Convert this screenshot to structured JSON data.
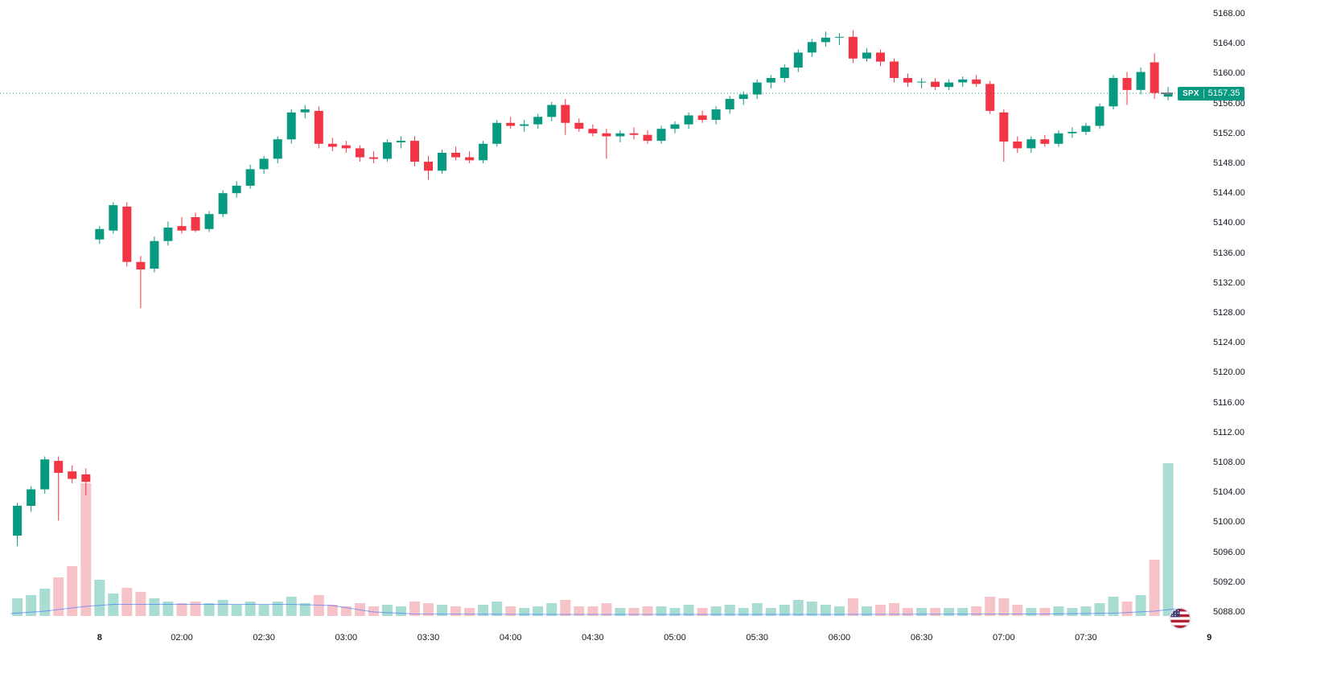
{
  "chart_data": {
    "type": "candlestick",
    "symbol": "SPX",
    "last_price": 5157.35,
    "last_price_label": "5157.35",
    "colors": {
      "up": "#089981",
      "down": "#F23645",
      "vol_up": "#a9dcd2",
      "vol_down": "#f6c3c8",
      "last_price_line": "#089981",
      "tag_bg": "#089981",
      "volume_ma_line": "#2962FF",
      "axis_text": "#131722",
      "dash": "#787b86"
    },
    "price_axis_ticks": [
      "5168.00",
      "5164.00",
      "5160.00",
      "5156.00",
      "5152.00",
      "5148.00",
      "5144.00",
      "5140.00",
      "5136.00",
      "5132.00",
      "5128.00",
      "5124.00",
      "5120.00",
      "5116.00",
      "5112.00",
      "5108.00",
      "5104.00",
      "5100.00",
      "5096.00",
      "5092.00",
      "5088.00"
    ],
    "price_axis_range": {
      "min": 5088,
      "max": 5168,
      "step": 4
    },
    "time_axis": [
      {
        "label": "8",
        "index": 6,
        "bold": true
      },
      {
        "label": "02:00",
        "index": 12,
        "bold": false
      },
      {
        "label": "02:30",
        "index": 18,
        "bold": false
      },
      {
        "label": "03:00",
        "index": 24,
        "bold": false
      },
      {
        "label": "03:30",
        "index": 30,
        "bold": false
      },
      {
        "label": "04:00",
        "index": 36,
        "bold": false
      },
      {
        "label": "04:30",
        "index": 42,
        "bold": false
      },
      {
        "label": "05:00",
        "index": 48,
        "bold": false
      },
      {
        "label": "05:30",
        "index": 54,
        "bold": false
      },
      {
        "label": "06:00",
        "index": 60,
        "bold": false
      },
      {
        "label": "06:30",
        "index": 66,
        "bold": false
      },
      {
        "label": "07:00",
        "index": 72,
        "bold": false
      },
      {
        "label": "07:30",
        "index": 78,
        "bold": false
      },
      {
        "label": "9",
        "index": 87,
        "bold": true
      }
    ],
    "candles_format": [
      "open",
      "high",
      "low",
      "close",
      "volume"
    ],
    "candles": [
      [
        5098.2,
        5102.6,
        5096.8,
        5102.2,
        22
      ],
      [
        5102.2,
        5104.8,
        5101.4,
        5104.4,
        26
      ],
      [
        5104.4,
        5108.8,
        5103.8,
        5108.4,
        34
      ],
      [
        5108.2,
        5108.8,
        5100.2,
        5106.6,
        48
      ],
      [
        5106.8,
        5107.6,
        5105.2,
        5105.8,
        62
      ],
      [
        5106.4,
        5107.2,
        5103.6,
        5105.4,
        165
      ],
      [
        5137.8,
        5139.6,
        5137.2,
        5139.2,
        45
      ],
      [
        5139.0,
        5142.8,
        5138.6,
        5142.4,
        28
      ],
      [
        5142.2,
        5142.8,
        5134.2,
        5134.8,
        35
      ],
      [
        5134.8,
        5135.6,
        5128.6,
        5133.8,
        30
      ],
      [
        5133.9,
        5138.2,
        5133.4,
        5137.6,
        22
      ],
      [
        5137.6,
        5140.2,
        5137.0,
        5139.4,
        18
      ],
      [
        5139.6,
        5140.8,
        5138.6,
        5139.0,
        16
      ],
      [
        5140.8,
        5141.4,
        5138.8,
        5139.0,
        18
      ],
      [
        5139.2,
        5141.6,
        5138.8,
        5141.2,
        16
      ],
      [
        5141.2,
        5144.4,
        5140.8,
        5144.0,
        20
      ],
      [
        5144.0,
        5145.6,
        5143.4,
        5145.0,
        14
      ],
      [
        5145.0,
        5147.8,
        5144.6,
        5147.2,
        18
      ],
      [
        5147.2,
        5149.0,
        5146.6,
        5148.6,
        14
      ],
      [
        5148.6,
        5151.6,
        5148.0,
        5151.2,
        18
      ],
      [
        5151.2,
        5155.2,
        5150.6,
        5154.8,
        24
      ],
      [
        5154.8,
        5155.8,
        5154.0,
        5155.2,
        16
      ],
      [
        5155.0,
        5155.6,
        5150.0,
        5150.6,
        26
      ],
      [
        5150.6,
        5151.4,
        5149.6,
        5150.2,
        14
      ],
      [
        5150.4,
        5151.0,
        5149.4,
        5150.0,
        12
      ],
      [
        5150.0,
        5150.4,
        5148.2,
        5148.8,
        16
      ],
      [
        5148.8,
        5149.6,
        5148.0,
        5148.6,
        12
      ],
      [
        5148.6,
        5151.2,
        5148.2,
        5150.8,
        14
      ],
      [
        5150.8,
        5151.6,
        5150.0,
        5151.0,
        12
      ],
      [
        5151.0,
        5151.6,
        5147.6,
        5148.2,
        18
      ],
      [
        5148.2,
        5149.0,
        5145.8,
        5147.0,
        16
      ],
      [
        5147.0,
        5149.8,
        5146.6,
        5149.4,
        14
      ],
      [
        5149.4,
        5150.2,
        5148.4,
        5148.8,
        12
      ],
      [
        5148.8,
        5149.6,
        5148.0,
        5148.4,
        10
      ],
      [
        5148.4,
        5151.0,
        5148.0,
        5150.6,
        14
      ],
      [
        5150.6,
        5153.8,
        5150.2,
        5153.4,
        18
      ],
      [
        5153.4,
        5154.2,
        5152.6,
        5153.0,
        12
      ],
      [
        5153.0,
        5153.8,
        5152.2,
        5153.2,
        10
      ],
      [
        5153.2,
        5154.6,
        5152.6,
        5154.2,
        12
      ],
      [
        5154.2,
        5156.2,
        5153.6,
        5155.8,
        16
      ],
      [
        5155.8,
        5156.6,
        5151.8,
        5153.4,
        20
      ],
      [
        5153.4,
        5154.0,
        5152.2,
        5152.6,
        12
      ],
      [
        5152.6,
        5153.2,
        5151.6,
        5152.0,
        12
      ],
      [
        5152.0,
        5152.6,
        5148.6,
        5151.6,
        16
      ],
      [
        5151.6,
        5152.4,
        5150.8,
        5152.0,
        10
      ],
      [
        5152.0,
        5152.8,
        5151.2,
        5151.8,
        10
      ],
      [
        5151.8,
        5152.4,
        5150.6,
        5151.0,
        12
      ],
      [
        5151.0,
        5153.0,
        5150.6,
        5152.6,
        12
      ],
      [
        5152.6,
        5153.6,
        5152.0,
        5153.2,
        10
      ],
      [
        5153.2,
        5154.8,
        5152.6,
        5154.4,
        14
      ],
      [
        5154.4,
        5155.0,
        5153.4,
        5153.8,
        10
      ],
      [
        5153.8,
        5155.6,
        5153.2,
        5155.2,
        12
      ],
      [
        5155.2,
        5157.0,
        5154.6,
        5156.6,
        14
      ],
      [
        5156.6,
        5157.6,
        5155.8,
        5157.2,
        10
      ],
      [
        5157.2,
        5159.2,
        5156.6,
        5158.8,
        16
      ],
      [
        5158.8,
        5159.8,
        5158.0,
        5159.4,
        10
      ],
      [
        5159.4,
        5161.2,
        5158.8,
        5160.8,
        14
      ],
      [
        5160.8,
        5163.2,
        5160.2,
        5162.8,
        20
      ],
      [
        5162.8,
        5164.6,
        5162.2,
        5164.2,
        18
      ],
      [
        5164.2,
        5165.6,
        5163.6,
        5164.8,
        14
      ],
      [
        5164.8,
        5165.4,
        5163.8,
        5164.9,
        12
      ],
      [
        5164.9,
        5165.8,
        5161.4,
        5162.0,
        22
      ],
      [
        5162.0,
        5163.4,
        5161.6,
        5162.8,
        12
      ],
      [
        5162.8,
        5163.2,
        5161.0,
        5161.6,
        14
      ],
      [
        5161.6,
        5162.0,
        5158.8,
        5159.4,
        16
      ],
      [
        5159.4,
        5160.0,
        5158.2,
        5158.8,
        10
      ],
      [
        5158.8,
        5159.4,
        5158.0,
        5158.9,
        10
      ],
      [
        5158.9,
        5159.4,
        5157.8,
        5158.2,
        10
      ],
      [
        5158.2,
        5159.2,
        5157.8,
        5158.8,
        10
      ],
      [
        5158.8,
        5159.6,
        5158.2,
        5159.2,
        10
      ],
      [
        5159.2,
        5159.8,
        5158.2,
        5158.6,
        12
      ],
      [
        5158.6,
        5159.0,
        5154.6,
        5155.0,
        24
      ],
      [
        5154.8,
        5155.2,
        5148.2,
        5150.9,
        22
      ],
      [
        5150.9,
        5151.6,
        5149.4,
        5150.0,
        14
      ],
      [
        5150.0,
        5151.6,
        5149.4,
        5151.2,
        10
      ],
      [
        5151.2,
        5151.8,
        5150.2,
        5150.6,
        10
      ],
      [
        5150.6,
        5152.4,
        5150.2,
        5152.0,
        12
      ],
      [
        5152.0,
        5152.8,
        5151.4,
        5152.2,
        10
      ],
      [
        5152.2,
        5153.4,
        5151.8,
        5153.0,
        12
      ],
      [
        5153.0,
        5156.0,
        5152.6,
        5155.6,
        16
      ],
      [
        5155.6,
        5159.8,
        5155.2,
        5159.4,
        24
      ],
      [
        5159.4,
        5160.2,
        5155.8,
        5157.8,
        18
      ],
      [
        5157.8,
        5160.8,
        5157.2,
        5160.2,
        26
      ],
      [
        5161.5,
        5162.7,
        5156.6,
        5157.4,
        70
      ],
      [
        5156.9,
        5158.2,
        5156.4,
        5157.35,
        190
      ]
    ],
    "volume_ma_points": [
      [
        -0.5,
        3
      ],
      [
        2,
        6
      ],
      [
        5,
        12
      ],
      [
        7,
        14.5
      ],
      [
        20,
        14.5
      ],
      [
        23,
        13
      ],
      [
        26,
        5
      ],
      [
        29,
        2.5
      ],
      [
        40,
        2
      ],
      [
        60,
        2
      ],
      [
        75,
        2.5
      ],
      [
        80,
        3.5
      ],
      [
        83,
        6
      ],
      [
        84.6,
        9
      ]
    ],
    "legend_position": "none",
    "grid": "off"
  }
}
